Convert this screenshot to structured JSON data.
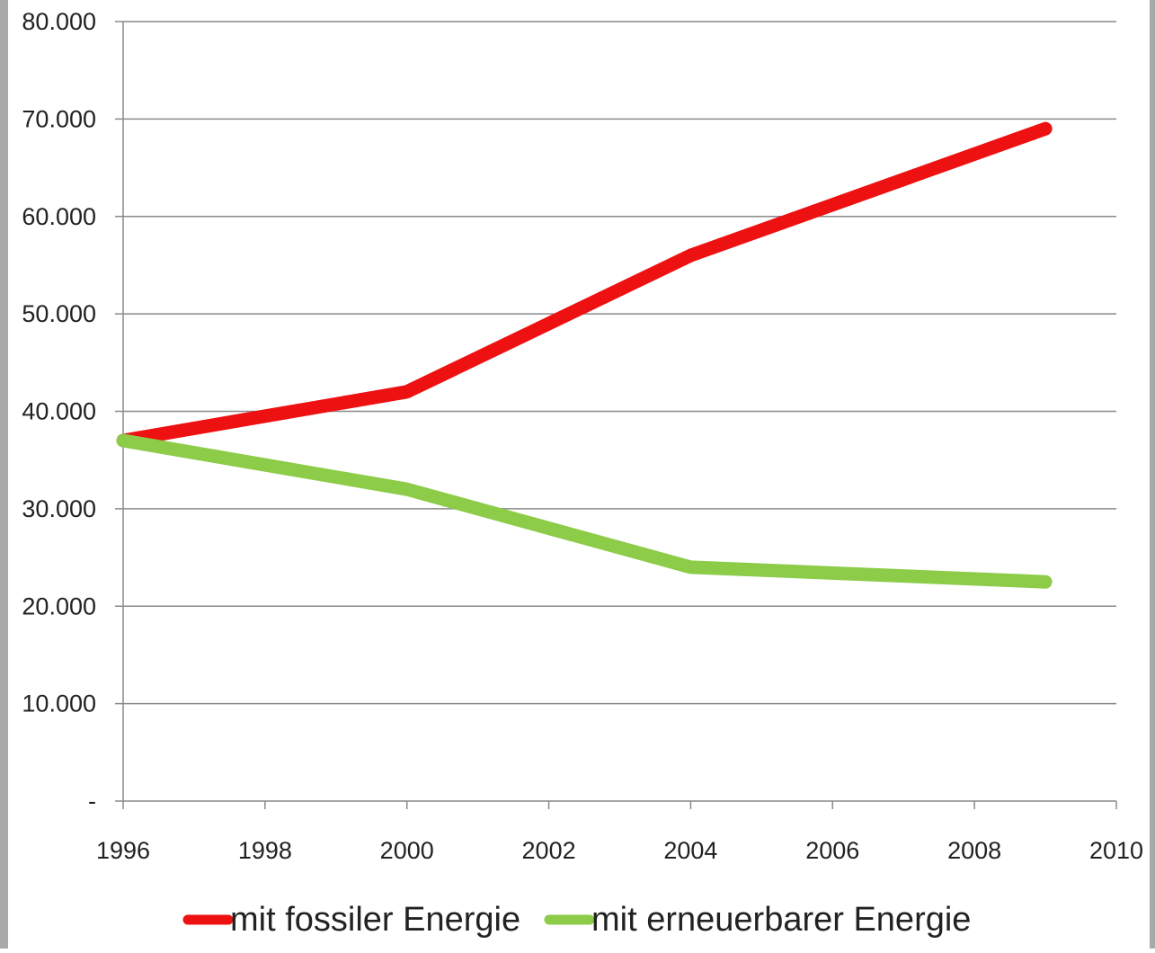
{
  "chart_data": {
    "type": "line",
    "title": "",
    "xlabel": "",
    "ylabel": "",
    "x_ticks": [
      "1996",
      "1998",
      "2000",
      "2002",
      "2004",
      "2006",
      "2008",
      "2010"
    ],
    "y_ticks": [
      "-",
      "10.000",
      "20.000",
      "30.000",
      "40.000",
      "50.000",
      "60.000",
      "70.000",
      "80.000"
    ],
    "xlim": [
      1996,
      2010
    ],
    "ylim": [
      0,
      80000
    ],
    "grid": "horizontal",
    "legend_position": "bottom",
    "series": [
      {
        "name": "mit fossiler Energie",
        "color": "#ee1111",
        "points": [
          {
            "x": 1996,
            "y": 37000
          },
          {
            "x": 2000,
            "y": 42000
          },
          {
            "x": 2004,
            "y": 56000
          },
          {
            "x": 2009,
            "y": 69000
          }
        ]
      },
      {
        "name": "mit erneuerbarer Energie",
        "color": "#8ccc48",
        "points": [
          {
            "x": 1996,
            "y": 37000
          },
          {
            "x": 2000,
            "y": 32000
          },
          {
            "x": 2004,
            "y": 24000
          },
          {
            "x": 2009,
            "y": 22500
          }
        ]
      }
    ]
  }
}
